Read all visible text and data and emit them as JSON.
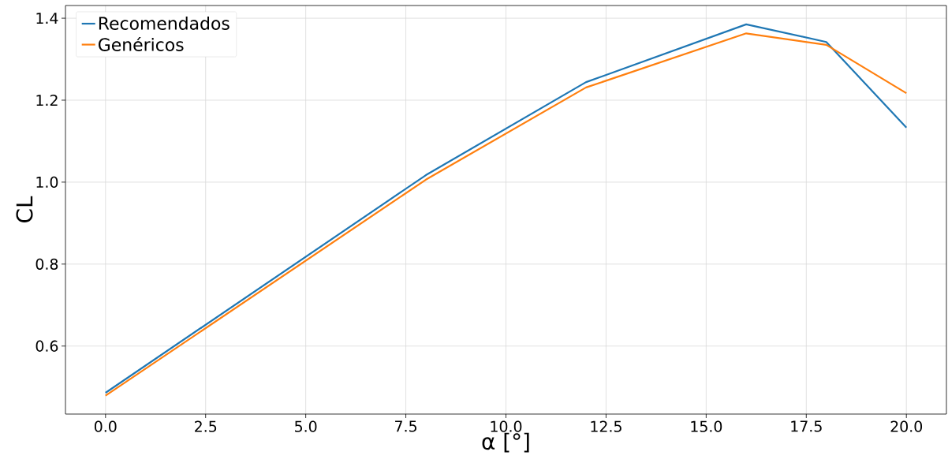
{
  "chart_data": {
    "type": "line",
    "xlabel": "α [°]",
    "ylabel": "CL",
    "x": [
      0,
      8,
      12,
      16,
      18,
      20
    ],
    "series": [
      {
        "name": "Recomendados",
        "color": "#1f77b4",
        "values": [
          0.486,
          1.017,
          1.244,
          1.385,
          1.342,
          1.133
        ]
      },
      {
        "name": "Genéricos",
        "color": "#ff7f0e",
        "values": [
          0.479,
          1.006,
          1.231,
          1.363,
          1.335,
          1.217
        ]
      }
    ],
    "xlim": [
      -1,
      21
    ],
    "ylim": [
      0.434,
      1.431
    ],
    "xticks": [
      {
        "value": 0,
        "label": "0.0"
      },
      {
        "value": 2.5,
        "label": "2.5"
      },
      {
        "value": 5,
        "label": "5.0"
      },
      {
        "value": 7.5,
        "label": "7.5"
      },
      {
        "value": 10,
        "label": "10.0"
      },
      {
        "value": 12.5,
        "label": "12.5"
      },
      {
        "value": 15,
        "label": "15.0"
      },
      {
        "value": 17.5,
        "label": "17.5"
      },
      {
        "value": 20,
        "label": "20.0"
      }
    ],
    "yticks": [
      {
        "value": 0.6,
        "label": "0.6"
      },
      {
        "value": 0.8,
        "label": "0.8"
      },
      {
        "value": 1.0,
        "label": "1.0"
      },
      {
        "value": 1.2,
        "label": "1.2"
      },
      {
        "value": 1.4,
        "label": "1.4"
      }
    ],
    "grid": true,
    "legend": "top left",
    "line_style": "solid"
  }
}
